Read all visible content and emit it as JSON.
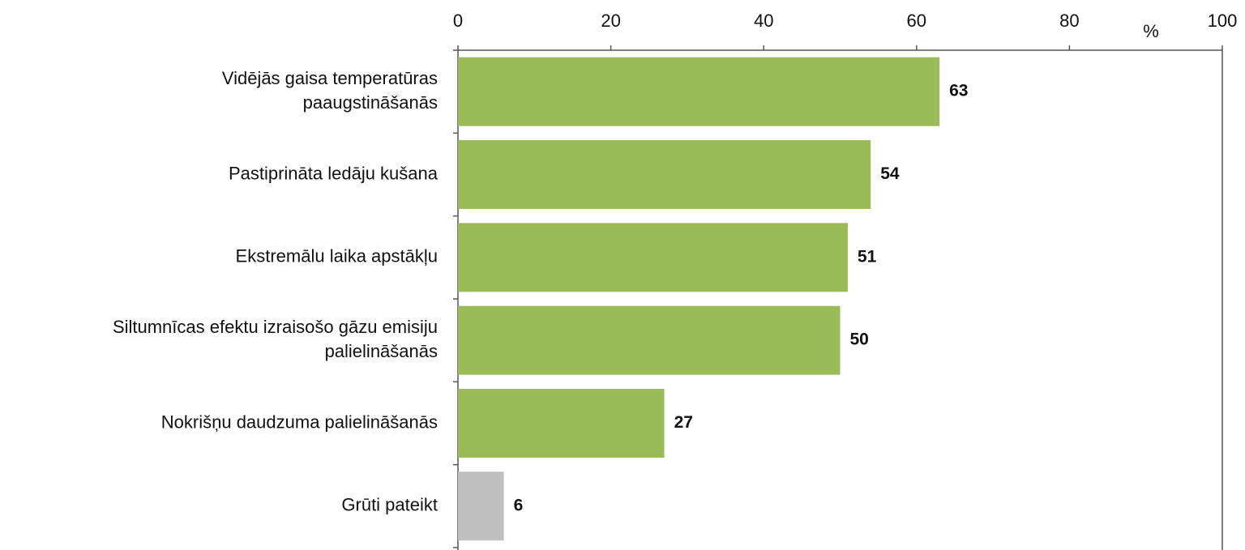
{
  "chart_data": {
    "type": "bar",
    "orientation": "horizontal",
    "categories": [
      [
        "Vidējās gaisa temperatūras",
        "paaugstināšanās"
      ],
      [
        "Pastiprināta ledāju kušana"
      ],
      [
        "Ekstremālu laika apstākļu"
      ],
      [
        "Siltumnīcas efektu izraisošo gāzu emisiju",
        "palielināšanās"
      ],
      [
        "Nokrišņu daudzuma palielināšanās"
      ],
      [
        "Grūti pateikt"
      ]
    ],
    "values": [
      63,
      54,
      51,
      50,
      27,
      6
    ],
    "colors": [
      "#9bbb59",
      "#9bbb59",
      "#9bbb59",
      "#9bbb59",
      "#9bbb59",
      "#bfbfbf"
    ],
    "xlim": [
      0,
      100
    ],
    "xticks": [
      0,
      20,
      40,
      60,
      80,
      100
    ],
    "x_unit": "%",
    "grid": false
  }
}
